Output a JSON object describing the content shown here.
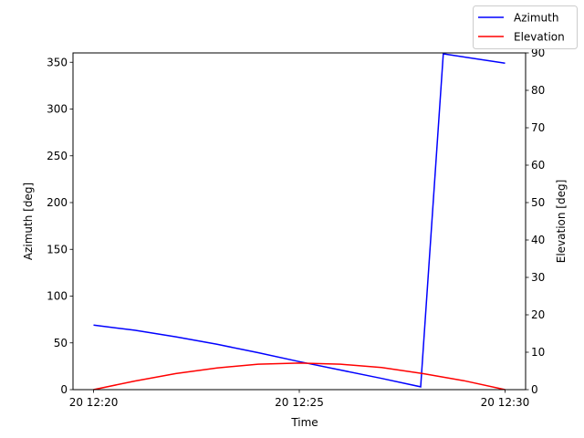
{
  "chart_data": {
    "type": "line",
    "xlabel": "Time",
    "ylabel_left": "Azimuth [deg]",
    "ylabel_right": "Elevation [deg]",
    "x_ticks": [
      "20 12:20",
      "20 12:25",
      "20 12:30"
    ],
    "x_tick_minutes": [
      0,
      5,
      10
    ],
    "xlim_minutes": [
      -0.5,
      10.5
    ],
    "ylim_left": [
      0,
      360
    ],
    "ylim_right": [
      0,
      90
    ],
    "yticks_left": [
      "0",
      "50",
      "100",
      "150",
      "200",
      "250",
      "300",
      "350"
    ],
    "yticks_right": [
      "0",
      "10",
      "20",
      "30",
      "40",
      "50",
      "60",
      "70",
      "80",
      "90"
    ],
    "legend_position": "top-right",
    "grid": false,
    "series": [
      {
        "name": "Azimuth",
        "axis": "left",
        "color": "#0000ff",
        "x_minutes": [
          0,
          1,
          2,
          3,
          4,
          5,
          6,
          7,
          7.95,
          8.5,
          10
        ],
        "values": [
          69,
          63.5,
          56.5,
          48.5,
          39.5,
          30,
          21,
          12,
          3,
          359,
          349
        ]
      },
      {
        "name": "Elevation",
        "axis": "right",
        "color": "#ff0000",
        "x_minutes": [
          0,
          1,
          2,
          3,
          4,
          5,
          6,
          7,
          8,
          9,
          10
        ],
        "values": [
          0,
          2.3,
          4.3,
          5.8,
          6.8,
          7.1,
          6.8,
          5.9,
          4.3,
          2.4,
          0
        ]
      }
    ]
  }
}
